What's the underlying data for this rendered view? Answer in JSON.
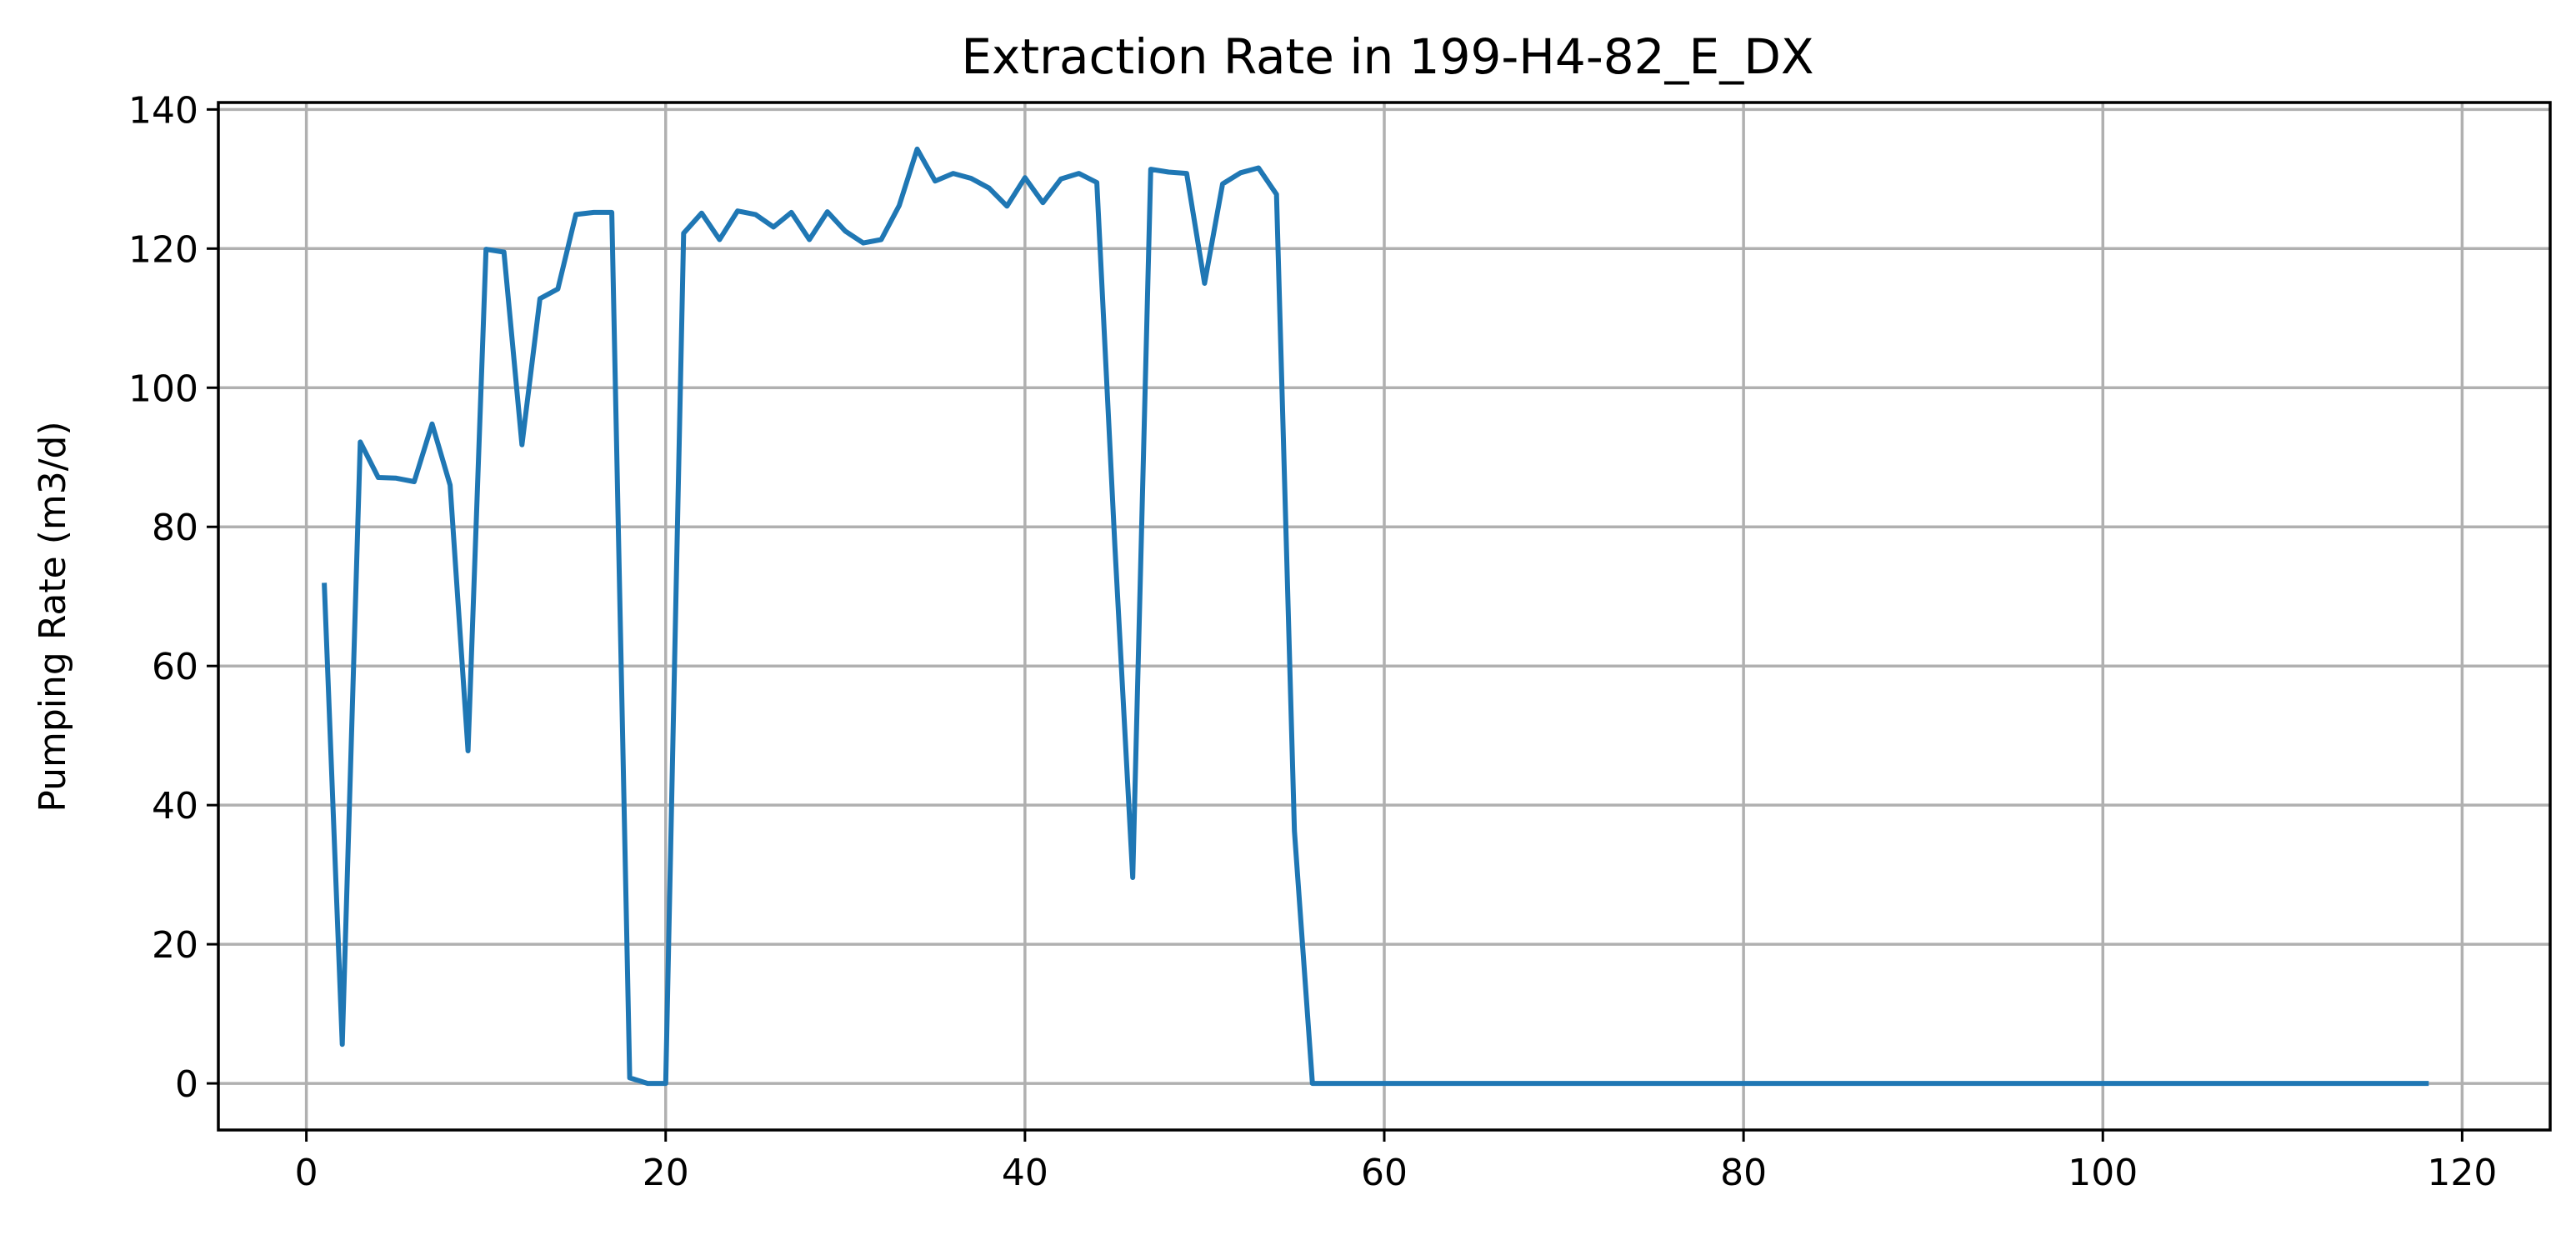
{
  "chart_data": {
    "type": "line",
    "title": "Extraction Rate in 199-H4-82_E_DX",
    "xlabel": "",
    "ylabel": "Pumping Rate (m3/d)",
    "xlim": [
      -4.9,
      124.9
    ],
    "ylim": [
      -6.7,
      141.0
    ],
    "xticks": [
      0,
      20,
      40,
      60,
      80,
      100,
      120
    ],
    "yticks": [
      0,
      20,
      40,
      60,
      80,
      100,
      120,
      140
    ],
    "grid": true,
    "series_color": "#1f77b4",
    "x": [
      1,
      2,
      3,
      4,
      5,
      6,
      7,
      8,
      9,
      10,
      11,
      12,
      13,
      14,
      15,
      16,
      17,
      18,
      19,
      20,
      21,
      22,
      23,
      24,
      25,
      26,
      27,
      28,
      29,
      30,
      31,
      32,
      33,
      34,
      35,
      36,
      37,
      38,
      39,
      40,
      41,
      42,
      43,
      44,
      45,
      46,
      47,
      48,
      49,
      50,
      51,
      52,
      53,
      54,
      55,
      56,
      57,
      58,
      59,
      60,
      61,
      62,
      63,
      64,
      65,
      66,
      67,
      68,
      69,
      70,
      71,
      72,
      73,
      74,
      75,
      76,
      77,
      78,
      79,
      80,
      81,
      82,
      83,
      84,
      85,
      86,
      87,
      88,
      89,
      90,
      91,
      92,
      93,
      94,
      95,
      96,
      97,
      98,
      99,
      100,
      101,
      102,
      103,
      104,
      105,
      106,
      107,
      108,
      109,
      110,
      111,
      112,
      113,
      114,
      115,
      116,
      117,
      118
    ],
    "y": [
      71.6,
      5.6,
      92.2,
      87.1,
      87.0,
      86.5,
      94.8,
      86.0,
      47.8,
      119.9,
      119.5,
      91.8,
      112.8,
      114.2,
      124.9,
      125.2,
      125.2,
      0.8,
      0,
      0,
      122.2,
      125.1,
      121.3,
      125.4,
      124.9,
      123.1,
      125.2,
      121.3,
      125.3,
      122.5,
      120.8,
      121.3,
      126.2,
      134.3,
      129.7,
      130.8,
      130.1,
      128.7,
      126.1,
      130.2,
      126.6,
      130.0,
      130.8,
      129.5,
      77.4,
      29.6,
      131.4,
      131.0,
      130.8,
      115.0,
      129.3,
      130.9,
      131.6,
      127.8,
      36.3,
      0,
      0,
      0,
      0,
      0,
      0,
      0,
      0,
      0,
      0,
      0,
      0,
      0,
      0,
      0,
      0,
      0,
      0,
      0,
      0,
      0,
      0,
      0,
      0,
      0,
      0,
      0,
      0,
      0,
      0,
      0,
      0,
      0,
      0,
      0,
      0,
      0,
      0,
      0,
      0,
      0,
      0,
      0,
      0,
      0,
      0,
      0,
      0,
      0,
      0,
      0,
      0,
      0,
      0,
      0,
      0,
      0,
      0,
      0,
      0,
      0,
      0,
      0
    ]
  }
}
